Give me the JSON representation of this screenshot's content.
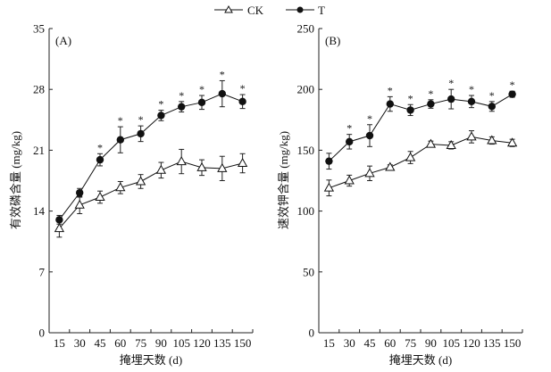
{
  "chart_data": [
    {
      "type": "line",
      "panel_label": "(A)",
      "xlabel": "掩埋天数 (d)",
      "ylabel": "有效磷含量 (mg/kg)",
      "categories": [
        "15",
        "30",
        "45",
        "60",
        "75",
        "90",
        "105",
        "120",
        "135",
        "150"
      ],
      "ylim": [
        0,
        35
      ],
      "yticks": [
        0,
        7,
        14,
        21,
        28,
        35
      ],
      "grid": false,
      "series": [
        {
          "name": "CK",
          "marker": "open-triangle",
          "values": [
            12.0,
            14.7,
            15.6,
            16.7,
            17.4,
            18.7,
            19.7,
            19.0,
            18.9,
            19.5
          ],
          "errors": [
            1.0,
            1.0,
            0.7,
            0.7,
            0.8,
            0.9,
            1.4,
            0.9,
            1.4,
            1.1
          ]
        },
        {
          "name": "T",
          "marker": "filled-circle",
          "values": [
            13.0,
            16.1,
            19.9,
            22.2,
            22.9,
            25.0,
            26.0,
            26.5,
            27.5,
            26.6
          ],
          "errors": [
            0.5,
            0.5,
            0.7,
            1.5,
            0.9,
            0.6,
            0.6,
            0.8,
            1.5,
            0.8
          ],
          "significance": [
            "",
            "",
            "*",
            "*",
            "*",
            "*",
            "*",
            "*",
            "*",
            "*"
          ]
        }
      ]
    },
    {
      "type": "line",
      "panel_label": "(B)",
      "xlabel": "掩埋天数 (d)",
      "ylabel": "速效钾含量 (mg/kg)",
      "categories": [
        "15",
        "30",
        "45",
        "60",
        "75",
        "90",
        "105",
        "120",
        "135",
        "150"
      ],
      "ylim": [
        0,
        250
      ],
      "yticks": [
        0,
        50,
        100,
        150,
        200,
        250
      ],
      "grid": false,
      "series": [
        {
          "name": "CK",
          "marker": "open-triangle",
          "values": [
            119,
            125,
            131,
            136,
            144,
            155,
            154,
            161,
            158,
            156
          ],
          "errors": [
            6.5,
            4.5,
            6,
            2,
            5,
            2.5,
            3,
            5,
            3,
            3
          ]
        },
        {
          "name": "T",
          "marker": "filled-circle",
          "values": [
            141,
            157,
            162,
            188,
            183,
            188,
            192,
            190,
            186,
            196
          ],
          "errors": [
            6.5,
            6,
            9,
            6,
            4.5,
            3.5,
            8,
            5,
            4,
            2.5
          ],
          "significance": [
            "",
            "*",
            "*",
            "*",
            "*",
            "*",
            "*",
            "*",
            "*",
            "*"
          ]
        }
      ]
    }
  ],
  "legend": {
    "placement": "top-center",
    "items": [
      {
        "name": "CK",
        "marker": "open-triangle"
      },
      {
        "name": "T",
        "marker": "filled-circle"
      }
    ]
  }
}
